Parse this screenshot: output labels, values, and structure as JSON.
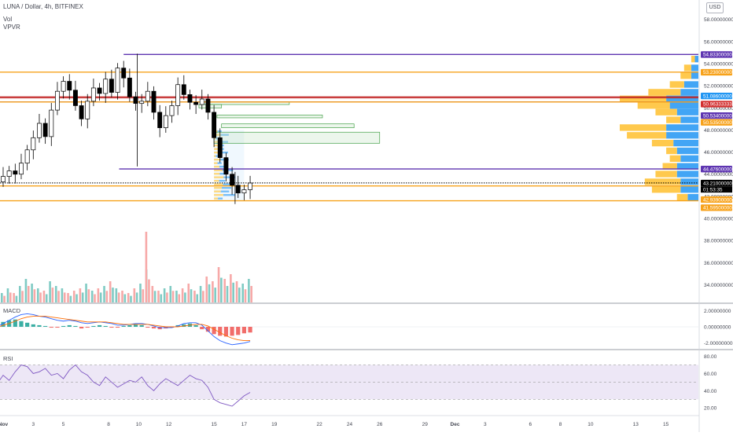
{
  "chart_data": {
    "type": "candlestick",
    "title": "LUNA / Dollar, 4h, BITFINEX",
    "symbol": "LUNA / Dollar",
    "interval": "4h",
    "exchange": "BITFINEX",
    "currency": "USD",
    "indicators": [
      "Vol",
      "VPVR"
    ],
    "x_ticks": [
      {
        "label": "Nov",
        "day": 1
      },
      {
        "label": "3",
        "day": 3
      },
      {
        "label": "5",
        "day": 5
      },
      {
        "label": "8",
        "day": 8
      },
      {
        "label": "10",
        "day": 10
      },
      {
        "label": "12",
        "day": 12
      },
      {
        "label": "15",
        "day": 15
      },
      {
        "label": "17",
        "day": 17
      },
      {
        "label": "19",
        "day": 19
      },
      {
        "label": "22",
        "day": 22
      },
      {
        "label": "24",
        "day": 24
      },
      {
        "label": "26",
        "day": 26
      },
      {
        "label": "29",
        "day": 29
      },
      {
        "label": "Dec",
        "day": 31
      },
      {
        "label": "3",
        "day": 33
      },
      {
        "label": "6",
        "day": 36
      },
      {
        "label": "8",
        "day": 38
      },
      {
        "label": "10",
        "day": 40
      },
      {
        "label": "13",
        "day": 43
      },
      {
        "label": "15",
        "day": 45
      }
    ],
    "price_axis": {
      "ticks": [
        "58.00000000",
        "56.00000000",
        "54.00000000",
        "52.00000000",
        "50.00000000",
        "48.00000000",
        "46.00000000",
        "44.00000000",
        "42.00000000",
        "40.00000000",
        "38.00000000",
        "36.00000000",
        "34.00000000"
      ],
      "tick_values": [
        58,
        56,
        54,
        52,
        50,
        48,
        46,
        44,
        42,
        40,
        38,
        36,
        34
      ],
      "ylim": [
        32.4,
        59.4
      ]
    },
    "horizontal_levels": [
      {
        "label": "54.83300000",
        "value": 54.833,
        "color": "#5e35b1",
        "line_from_day": 9.0
      },
      {
        "label": "53.23000000",
        "value": 53.23,
        "color": "#f7a21b",
        "line_from_day": 0
      },
      {
        "label": "51.08600000",
        "value": 51.086,
        "color": "#2196f3",
        "line_from_day": null
      },
      {
        "label": "50.96333333",
        "value": 50.96333333,
        "color": "#d32f2f",
        "line_from_day": 0
      },
      {
        "label": "50.53400000",
        "value": 50.534,
        "color": "#5e35b1",
        "line_from_day": 0
      },
      {
        "label": "50.53500000",
        "value": 50.535,
        "color": "#f7a21b",
        "line_from_day": 0
      },
      {
        "label": "44.47600000",
        "value": 44.476,
        "color": "#5e35b1",
        "line_from_day": 8.7
      },
      {
        "label": "43.21000000",
        "value": 43.21,
        "color": "#000000",
        "line_from_day": 0,
        "dotted": true
      },
      {
        "label": "42.93900000",
        "value": 42.939,
        "color": "#f7a21b",
        "line_from_day": 0
      },
      {
        "label": "41.59500000",
        "value": 41.595,
        "color": "#f7a21b",
        "line_from_day": 0
      }
    ],
    "countdown": "01:53:35",
    "price_series": [
      {
        "day": 0.2,
        "close": 42.5
      },
      {
        "day": 0.6,
        "close": 43.3
      },
      {
        "day": 1.0,
        "close": 43.8
      },
      {
        "day": 1.4,
        "close": 44.3
      },
      {
        "day": 1.8,
        "close": 44.0
      },
      {
        "day": 2.2,
        "close": 45.0
      },
      {
        "day": 2.6,
        "close": 46.2
      },
      {
        "day": 3.0,
        "close": 47.3
      },
      {
        "day": 3.4,
        "close": 48.6
      },
      {
        "day": 3.8,
        "close": 47.4
      },
      {
        "day": 4.2,
        "close": 49.8
      },
      {
        "day": 4.6,
        "close": 51.5
      },
      {
        "day": 5.0,
        "close": 52.4
      },
      {
        "day": 5.4,
        "close": 51.6
      },
      {
        "day": 5.8,
        "close": 50.2
      },
      {
        "day": 6.2,
        "close": 49.0
      },
      {
        "day": 6.6,
        "close": 50.6
      },
      {
        "day": 7.0,
        "close": 51.8
      },
      {
        "day": 7.4,
        "close": 51.3
      },
      {
        "day": 7.8,
        "close": 52.6
      },
      {
        "day": 8.2,
        "close": 51.4
      },
      {
        "day": 8.6,
        "close": 53.6
      },
      {
        "day": 9.0,
        "close": 52.7
      },
      {
        "day": 9.4,
        "close": 51.0
      },
      {
        "day": 9.8,
        "close": 50.4
      },
      {
        "day": 10.2,
        "close": 50.6
      },
      {
        "day": 10.6,
        "close": 51.5
      },
      {
        "day": 11.0,
        "close": 49.6
      },
      {
        "day": 11.4,
        "close": 48.2
      },
      {
        "day": 11.8,
        "close": 49.3
      },
      {
        "day": 12.2,
        "close": 50.2
      },
      {
        "day": 12.6,
        "close": 52.1
      },
      {
        "day": 13.0,
        "close": 51.2
      },
      {
        "day": 13.4,
        "close": 50.5
      },
      {
        "day": 13.8,
        "close": 50.3
      },
      {
        "day": 14.2,
        "close": 50.8
      },
      {
        "day": 14.6,
        "close": 49.6
      },
      {
        "day": 15.0,
        "close": 47.3
      },
      {
        "day": 15.4,
        "close": 45.5
      },
      {
        "day": 15.8,
        "close": 44.0
      },
      {
        "day": 16.2,
        "close": 43.0
      },
      {
        "day": 16.6,
        "close": 42.3
      },
      {
        "day": 17.0,
        "close": 42.6
      },
      {
        "day": 17.4,
        "close": 43.2
      }
    ],
    "price_extremes": {
      "high": 54.9,
      "low": 41.3
    },
    "volume_levels": [
      3,
      5,
      4,
      6,
      4,
      7,
      10,
      8,
      6,
      5,
      9,
      7,
      6,
      4,
      5,
      6,
      8,
      5,
      6,
      7,
      9,
      6,
      5,
      4,
      6,
      8,
      14,
      7,
      5,
      6,
      7,
      5,
      6,
      8,
      5,
      7,
      11,
      9,
      15,
      10,
      12,
      9,
      8,
      10
    ],
    "volume_spike": {
      "day": 10.5,
      "level": 30
    },
    "vpvr_profile": [
      {
        "price": 54.4,
        "total": 2,
        "buy": 1
      },
      {
        "price": 53.6,
        "total": 4,
        "buy": 2
      },
      {
        "price": 52.9,
        "total": 5,
        "buy": 2
      },
      {
        "price": 52.1,
        "total": 8,
        "buy": 4
      },
      {
        "price": 51.4,
        "total": 14,
        "buy": 5
      },
      {
        "price": 50.8,
        "total": 22,
        "buy": 9
      },
      {
        "price": 50.2,
        "total": 17,
        "buy": 8
      },
      {
        "price": 49.6,
        "total": 12,
        "buy": 6
      },
      {
        "price": 48.9,
        "total": 9,
        "buy": 5
      },
      {
        "price": 48.2,
        "total": 22,
        "buy": 9
      },
      {
        "price": 47.5,
        "total": 20,
        "buy": 9
      },
      {
        "price": 46.8,
        "total": 13,
        "buy": 7
      },
      {
        "price": 46.1,
        "total": 9,
        "buy": 6
      },
      {
        "price": 45.4,
        "total": 8,
        "buy": 5
      },
      {
        "price": 44.7,
        "total": 10,
        "buy": 6
      },
      {
        "price": 44.0,
        "total": 12,
        "buy": 6
      },
      {
        "price": 43.3,
        "total": 15,
        "buy": 5
      },
      {
        "price": 42.6,
        "total": 13,
        "buy": 5
      },
      {
        "price": 41.9,
        "total": 6,
        "buy": 3
      }
    ],
    "macd": {
      "label": "MACD",
      "ticks": [
        "2.00000000",
        "0.00000000",
        "-2.00000000"
      ],
      "tick_values": [
        2,
        0,
        -2
      ],
      "histogram": [
        0.3,
        0.5,
        0.6,
        0.8,
        0.9,
        0.7,
        0.5,
        0.3,
        0.2,
        0.1,
        -0.1,
        -0.1,
        0.1,
        0.2,
        0.1,
        -0.2,
        -0.1,
        0.1,
        0.2,
        0.1,
        -0.1,
        -0.1,
        0.1,
        0.2,
        0.3,
        0.2,
        -0.1,
        -0.2,
        -0.3,
        -0.2,
        -0.1,
        0.2,
        0.3,
        0.4,
        0.2,
        -0.3,
        -0.6,
        -0.9,
        -1.1,
        -1.2,
        -1.1,
        -1.0,
        -0.8,
        -0.7
      ],
      "macd_line": [
        -0.5,
        0.0,
        0.4,
        0.8,
        1.2,
        1.5,
        1.6,
        1.5,
        1.3,
        1.2,
        1.0,
        0.8,
        0.7,
        0.8,
        0.7,
        0.5,
        0.4,
        0.5,
        0.6,
        0.5,
        0.4,
        0.2,
        0.2,
        0.3,
        0.4,
        0.4,
        0.3,
        0.1,
        -0.1,
        -0.1,
        -0.1,
        0.1,
        0.4,
        0.5,
        0.5,
        0.2,
        -0.5,
        -1.2,
        -1.7,
        -2.0,
        -2.2,
        -2.1,
        -2.0,
        -1.8
      ],
      "signal_line": [
        -0.3,
        -0.1,
        0.2,
        0.4,
        0.7,
        1.0,
        1.2,
        1.3,
        1.3,
        1.3,
        1.2,
        1.1,
        1.0,
        0.9,
        0.8,
        0.7,
        0.6,
        0.6,
        0.6,
        0.6,
        0.5,
        0.4,
        0.3,
        0.3,
        0.3,
        0.3,
        0.3,
        0.2,
        0.1,
        0.0,
        0.0,
        0.0,
        0.1,
        0.2,
        0.3,
        0.3,
        0.1,
        -0.3,
        -0.7,
        -1.1,
        -1.4,
        -1.6,
        -1.7,
        -1.7
      ]
    },
    "rsi": {
      "label": "RSI",
      "ticks": [
        "80.00",
        "60.00",
        "40.00",
        "20.00"
      ],
      "tick_values": [
        80,
        60,
        40,
        20
      ],
      "band": [
        30,
        70
      ],
      "values": [
        56,
        48,
        58,
        52,
        62,
        70,
        68,
        60,
        62,
        66,
        58,
        60,
        54,
        64,
        70,
        62,
        58,
        50,
        46,
        56,
        50,
        44,
        48,
        52,
        50,
        56,
        46,
        40,
        48,
        54,
        50,
        46,
        52,
        58,
        54,
        52,
        44,
        30,
        26,
        24,
        22,
        28,
        34,
        38
      ]
    },
    "colors": {
      "up": "#ffffff",
      "down": "#000000",
      "bull_volume": "#80cbc4",
      "bear_volume": "#f7a9a8",
      "vpvr_buy": "#42a5f5",
      "vpvr_sell": "#ffc94d",
      "macd_line": "#2962ff",
      "signal_line": "#ff6d00",
      "rsi_line": "#7e57c2",
      "rsi_band": "#ede7f6"
    }
  }
}
